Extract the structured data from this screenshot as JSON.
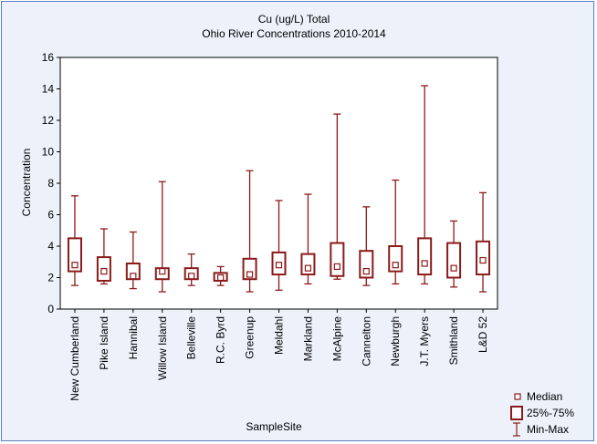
{
  "chart_data": {
    "type": "boxplot",
    "title": "Cu (ug/L) Total",
    "subtitle": "Ohio River Concentrations 2010-2014",
    "xlabel": "SampleSite",
    "ylabel": "Concentration",
    "ylim": [
      0,
      16
    ],
    "yticks": [
      0,
      2,
      4,
      6,
      8,
      10,
      12,
      14,
      16
    ],
    "categories": [
      "New Cumberland",
      "Pike Island",
      "Hannibal",
      "Willow Island",
      "Belleville",
      "R.C. Byrd",
      "Greenup",
      "Meldahl",
      "Markland",
      "McAlpine",
      "Cannelton",
      "Newburgh",
      "J.T. Myers",
      "Smithland",
      "L&D 52"
    ],
    "series": [
      {
        "name": "Min-Max",
        "min": [
          1.5,
          1.6,
          1.3,
          1.1,
          1.5,
          1.5,
          1.1,
          1.2,
          1.6,
          1.9,
          1.5,
          1.6,
          1.6,
          1.4,
          1.1
        ],
        "max": [
          7.2,
          5.1,
          4.9,
          8.1,
          3.5,
          2.7,
          8.8,
          6.9,
          7.3,
          12.4,
          6.5,
          8.2,
          14.2,
          5.6,
          7.4
        ]
      },
      {
        "name": "25%-75%",
        "q1": [
          2.4,
          1.8,
          1.9,
          1.9,
          1.9,
          1.8,
          1.9,
          2.2,
          2.2,
          2.1,
          2.0,
          2.4,
          2.2,
          2.0,
          2.2
        ],
        "q3": [
          4.5,
          3.3,
          2.9,
          2.6,
          2.6,
          2.3,
          3.2,
          3.6,
          3.5,
          4.2,
          3.7,
          4.0,
          4.5,
          4.2,
          4.3
        ]
      },
      {
        "name": "Median",
        "values": [
          2.8,
          2.4,
          2.1,
          2.4,
          2.1,
          2.0,
          2.2,
          2.8,
          2.6,
          2.7,
          2.4,
          2.8,
          2.9,
          2.6,
          3.1
        ]
      }
    ],
    "legend_position": "bottom-right",
    "grid": false,
    "colors": {
      "series": "#8b1a1a",
      "frame_border": "#5b7fc0",
      "frame_background": "#ecf1fa",
      "plot_background": "#ffffff"
    }
  }
}
